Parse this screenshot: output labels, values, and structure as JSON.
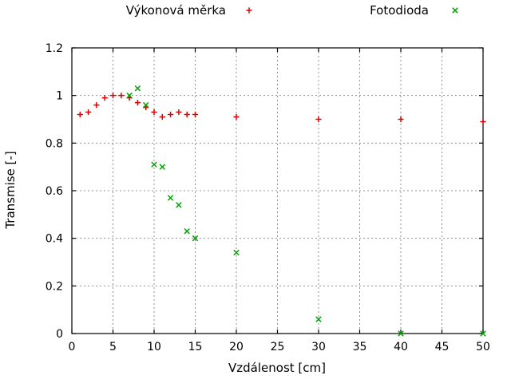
{
  "legend": [
    {
      "label": "Výkonová měrka",
      "marker": "plus",
      "color": "#e00000"
    },
    {
      "label": "Fotodioda",
      "marker": "cross",
      "color": "#00a400"
    }
  ],
  "axes": {
    "xlabel": "Vzdálenost [cm]",
    "ylabel": "Transmise [-]"
  },
  "chart_data": {
    "type": "scatter",
    "xlabel": "Vzdálenost [cm]",
    "ylabel": "Transmise [-]",
    "xlim": [
      0,
      50
    ],
    "ylim": [
      0,
      1.2
    ],
    "grid": true,
    "legend_position": "above",
    "x_ticks": [
      0,
      5,
      10,
      15,
      20,
      25,
      30,
      35,
      40,
      45,
      50
    ],
    "x_tick_labels": [
      "0",
      "5",
      "10",
      "15",
      "20",
      "25",
      "30",
      "35",
      "40",
      "45",
      "50"
    ],
    "y_ticks": [
      0,
      0.2,
      0.4,
      0.6,
      0.8,
      1,
      1.2
    ],
    "y_tick_labels": [
      "0",
      "0.2",
      "0.4",
      "0.6",
      "0.8",
      "1",
      "1.2"
    ],
    "series": [
      {
        "name": "Výkonová měrka",
        "marker": "plus",
        "color": "#e00000",
        "points": [
          [
            1,
            0.92
          ],
          [
            2,
            0.93
          ],
          [
            3,
            0.96
          ],
          [
            4,
            0.99
          ],
          [
            5,
            1.0
          ],
          [
            6,
            1.0
          ],
          [
            7,
            0.99
          ],
          [
            8,
            0.97
          ],
          [
            9,
            0.95
          ],
          [
            10,
            0.93
          ],
          [
            11,
            0.91
          ],
          [
            12,
            0.92
          ],
          [
            13,
            0.93
          ],
          [
            14,
            0.92
          ],
          [
            15,
            0.92
          ],
          [
            20,
            0.91
          ],
          [
            30,
            0.9
          ],
          [
            40,
            0.9
          ],
          [
            50,
            0.89
          ]
        ]
      },
      {
        "name": "Fotodioda",
        "marker": "cross",
        "color": "#00a400",
        "points": [
          [
            7,
            1.0
          ],
          [
            8,
            1.03
          ],
          [
            9,
            0.96
          ],
          [
            10,
            0.71
          ],
          [
            11,
            0.7
          ],
          [
            12,
            0.57
          ],
          [
            13,
            0.54
          ],
          [
            14,
            0.43
          ],
          [
            15,
            0.4
          ],
          [
            20,
            0.34
          ],
          [
            30,
            0.06
          ],
          [
            40,
            0.0
          ],
          [
            50,
            0.0
          ]
        ]
      }
    ],
    "grid_color": "#909090",
    "border_color": "#000000"
  }
}
